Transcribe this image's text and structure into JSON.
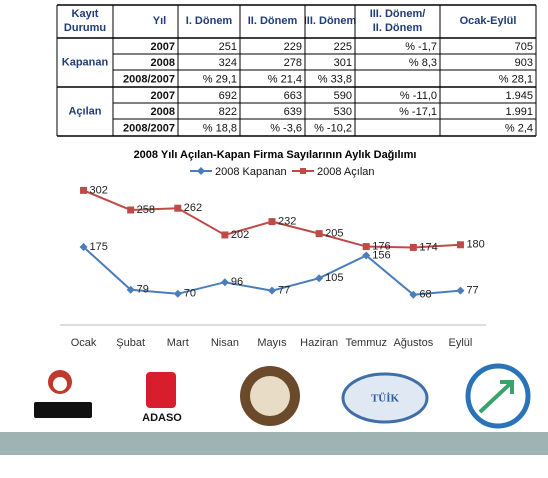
{
  "table": {
    "header": [
      "Kayıt Durumu",
      "Yıl",
      "I. Dönem",
      "II. Dönem",
      "III. Dönem",
      "III. Dönem/ II. Dönem",
      "Ocak-Eylül"
    ],
    "groups": [
      {
        "label": "Kapanan",
        "rows": [
          [
            "2007",
            251,
            229,
            225,
            "% -1,7",
            705
          ],
          [
            "2008",
            324,
            278,
            301,
            "% 8,3",
            903
          ],
          [
            "2008/2007",
            "% 29,1",
            "% 21,4",
            "% 33,8",
            null,
            "% 28,1"
          ]
        ]
      },
      {
        "label": "Açılan",
        "rows": [
          [
            "2007",
            692,
            663,
            590,
            "% -11,0",
            "1.945"
          ],
          [
            "2008",
            822,
            639,
            530,
            "% -17,1",
            "1.991"
          ],
          [
            "2008/2007",
            "% 18,8",
            "% -3,6",
            "% -10,2",
            null,
            "% 2,4"
          ]
        ]
      }
    ]
  },
  "chart_data": {
    "type": "line",
    "title": "2008 Yılı Açılan-Kapan Firma Sayılarının Aylık Dağılımı",
    "categories": [
      "Ocak",
      "Şubat",
      "Mart",
      "Nisan",
      "Mayıs",
      "Haziran",
      "Temmuz",
      "Ağustos",
      "Eylül"
    ],
    "series": [
      {
        "name": "2008 Kapanan",
        "color": "#4a7ebb",
        "values": [
          175,
          79,
          70,
          96,
          77,
          105,
          156,
          68,
          77
        ]
      },
      {
        "name": "2008 Açılan",
        "color": "#be4b48",
        "values": [
          302,
          258,
          262,
          202,
          232,
          205,
          176,
          174,
          180
        ]
      }
    ],
    "ylim": [
      0,
      350
    ],
    "legend": "top"
  },
  "logos": [
    "ADASO",
    "TÜİK"
  ]
}
